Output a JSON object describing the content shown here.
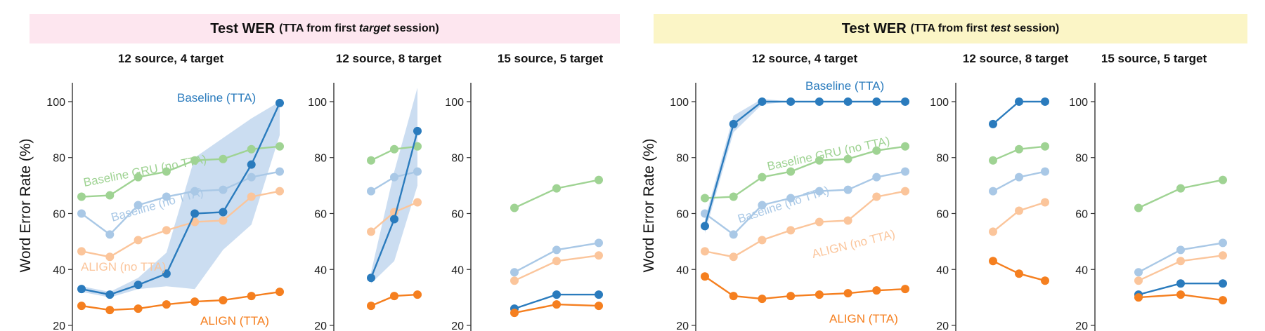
{
  "banners": [
    {
      "title": "Test WER",
      "sub_open": "(TTA from first ",
      "sub_em": "target",
      "sub_close": " session)"
    },
    {
      "title": "Test WER",
      "sub_open": "(TTA from first ",
      "sub_em": "test",
      "sub_close": " session)"
    }
  ],
  "colors": {
    "baseline_tta": "#2a7bbd",
    "baseline_no_tta": "#a9c8e6",
    "gru_no_tta": "#9fd393",
    "align_no_tta": "#fbc59b",
    "align_tta": "#f57f1f",
    "band": "#c2d7ee"
  },
  "chart_data": [
    {
      "type": "line",
      "panel_title": "12 source, 4 target",
      "ylabel": "Word Error Rate (%)",
      "ylim": [
        18,
        105
      ],
      "yticks": [
        20,
        40,
        60,
        80,
        100
      ],
      "series": [
        {
          "name": "Baseline GRU (no TTA)",
          "color_key": "gru_no_tta",
          "x": [
            1,
            2,
            3,
            4,
            5,
            6,
            7,
            8
          ],
          "y": [
            66,
            66.5,
            73,
            75,
            79,
            79.5,
            83,
            84
          ]
        },
        {
          "name": "Baseline (no TTA)",
          "color_key": "baseline_no_tta",
          "x": [
            1,
            2,
            3,
            4,
            5,
            6,
            7,
            8
          ],
          "y": [
            60,
            52.5,
            63,
            66,
            68,
            68.5,
            73,
            75
          ]
        },
        {
          "name": "ALIGN (no TTA)",
          "color_key": "align_no_tta",
          "x": [
            1,
            2,
            3,
            4,
            5,
            6,
            7,
            8
          ],
          "y": [
            46.5,
            44.5,
            50.5,
            54,
            57,
            57.5,
            66,
            68
          ]
        },
        {
          "name": "ALIGN (TTA)",
          "color_key": "align_tta",
          "x": [
            1,
            2,
            3,
            4,
            5,
            6,
            7,
            8
          ],
          "y": [
            27,
            25.5,
            26,
            27.5,
            28.5,
            29,
            30.5,
            32
          ]
        },
        {
          "name": "Baseline (TTA)",
          "color_key": "baseline_tta",
          "x": [
            1,
            2,
            3,
            4,
            5,
            6,
            7,
            8
          ],
          "y": [
            33,
            31,
            34.5,
            38.5,
            60,
            60.5,
            77.5,
            99.5
          ],
          "band_low": [
            32,
            30,
            33,
            34,
            33,
            47,
            56,
            88
          ],
          "band_high": [
            34,
            32,
            37,
            46,
            80,
            87,
            94,
            100
          ]
        }
      ]
    },
    {
      "type": "line",
      "panel_title": "12 source, 8 target",
      "ylabel": "",
      "ylim": [
        18,
        105
      ],
      "yticks": [
        20,
        40,
        60,
        80,
        100
      ],
      "series": [
        {
          "color_key": "gru_no_tta",
          "x": [
            1,
            2,
            3
          ],
          "y": [
            79,
            83,
            84
          ]
        },
        {
          "color_key": "baseline_no_tta",
          "x": [
            1,
            2,
            3
          ],
          "y": [
            68,
            73,
            75
          ]
        },
        {
          "color_key": "align_no_tta",
          "x": [
            1,
            2,
            3
          ],
          "y": [
            53.5,
            60.5,
            64
          ]
        },
        {
          "color_key": "align_tta",
          "x": [
            1,
            2,
            3
          ],
          "y": [
            27,
            30.5,
            31
          ]
        },
        {
          "color_key": "baseline_tta",
          "x": [
            1,
            2,
            3
          ],
          "y": [
            37,
            58,
            89.5
          ],
          "band_low": [
            35,
            43,
            70
          ],
          "band_high": [
            39,
            75,
            105
          ]
        }
      ]
    },
    {
      "type": "line",
      "panel_title": "15 source, 5 target",
      "ylabel": "",
      "ylim": [
        18,
        105
      ],
      "yticks": [
        20,
        40,
        60,
        80,
        100
      ],
      "series": [
        {
          "color_key": "gru_no_tta",
          "x": [
            1,
            2,
            3
          ],
          "y": [
            62,
            69,
            72
          ]
        },
        {
          "color_key": "baseline_no_tta",
          "x": [
            1,
            2,
            3
          ],
          "y": [
            39,
            47,
            49.5
          ]
        },
        {
          "color_key": "align_no_tta",
          "x": [
            1,
            2,
            3
          ],
          "y": [
            36,
            43,
            45
          ]
        },
        {
          "color_key": "baseline_tta",
          "x": [
            1,
            2,
            3
          ],
          "y": [
            26,
            31,
            31
          ]
        },
        {
          "color_key": "align_tta",
          "x": [
            1,
            2,
            3
          ],
          "y": [
            24.5,
            27.5,
            27
          ]
        }
      ]
    },
    {
      "type": "line",
      "panel_title": "12 source, 4 target",
      "ylabel": "Word Error Rate (%)",
      "ylim": [
        18,
        105
      ],
      "yticks": [
        20,
        40,
        60,
        80,
        100
      ],
      "series": [
        {
          "name": "Baseline GRU (no TTA)",
          "color_key": "gru_no_tta",
          "x": [
            1,
            2,
            3,
            4,
            5,
            6,
            7,
            8
          ],
          "y": [
            65.5,
            66,
            73,
            75,
            79,
            79.5,
            82.5,
            84
          ]
        },
        {
          "name": "Baseline (no TTA)",
          "color_key": "baseline_no_tta",
          "x": [
            1,
            2,
            3,
            4,
            5,
            6,
            7,
            8
          ],
          "y": [
            60,
            52.5,
            63,
            65.5,
            68,
            68.5,
            73,
            75
          ]
        },
        {
          "name": "ALIGN (no TTA)",
          "color_key": "align_no_tta",
          "x": [
            1,
            2,
            3,
            4,
            5,
            6,
            7,
            8
          ],
          "y": [
            46.5,
            44.5,
            50.5,
            54,
            57,
            57.5,
            66,
            68
          ]
        },
        {
          "name": "ALIGN (TTA)",
          "color_key": "align_tta",
          "x": [
            1,
            2,
            3,
            4,
            5,
            6,
            7,
            8
          ],
          "y": [
            37.5,
            30.5,
            29.5,
            30.5,
            31,
            31.5,
            32.5,
            33
          ]
        },
        {
          "name": "Baseline (TTA)",
          "color_key": "baseline_tta",
          "x": [
            1,
            2,
            3,
            4,
            5,
            6,
            7,
            8
          ],
          "y": [
            55.5,
            92,
            100,
            100,
            100,
            100,
            100,
            100
          ],
          "band_low": [
            53,
            89,
            99,
            100,
            100,
            100,
            100,
            100
          ],
          "band_high": [
            58,
            95,
            101,
            100,
            100,
            100,
            100,
            100
          ]
        }
      ]
    },
    {
      "type": "line",
      "panel_title": "12 source, 8 target",
      "ylabel": "",
      "ylim": [
        18,
        105
      ],
      "yticks": [
        20,
        40,
        60,
        80,
        100
      ],
      "series": [
        {
          "color_key": "gru_no_tta",
          "x": [
            1,
            2,
            3
          ],
          "y": [
            79,
            83,
            84
          ]
        },
        {
          "color_key": "baseline_no_tta",
          "x": [
            1,
            2,
            3
          ],
          "y": [
            68,
            73,
            75
          ]
        },
        {
          "color_key": "align_no_tta",
          "x": [
            1,
            2,
            3
          ],
          "y": [
            53.5,
            61,
            64
          ]
        },
        {
          "color_key": "align_tta",
          "x": [
            1,
            2,
            3
          ],
          "y": [
            43,
            38.5,
            36
          ]
        },
        {
          "color_key": "baseline_tta",
          "x": [
            1,
            2,
            3
          ],
          "y": [
            92,
            100,
            100
          ]
        }
      ]
    },
    {
      "type": "line",
      "panel_title": "15 source, 5 target",
      "ylabel": "",
      "ylim": [
        18,
        105
      ],
      "yticks": [
        20,
        40,
        60,
        80,
        100
      ],
      "series": [
        {
          "color_key": "gru_no_tta",
          "x": [
            1,
            2,
            3
          ],
          "y": [
            62,
            69,
            72
          ]
        },
        {
          "color_key": "baseline_no_tta",
          "x": [
            1,
            2,
            3
          ],
          "y": [
            39,
            47,
            49.5
          ]
        },
        {
          "color_key": "align_no_tta",
          "x": [
            1,
            2,
            3
          ],
          "y": [
            36,
            43,
            45
          ]
        },
        {
          "color_key": "baseline_tta",
          "x": [
            1,
            2,
            3
          ],
          "y": [
            31,
            35,
            35
          ]
        },
        {
          "color_key": "align_tta",
          "x": [
            1,
            2,
            3
          ],
          "y": [
            30,
            31,
            29
          ]
        }
      ]
    }
  ]
}
